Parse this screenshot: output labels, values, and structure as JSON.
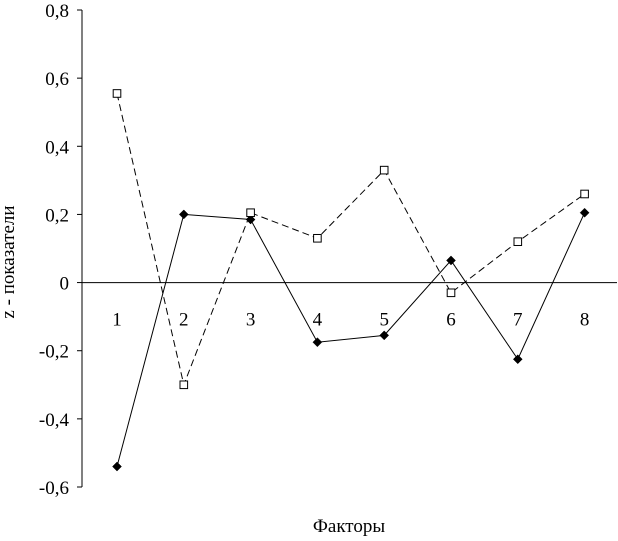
{
  "chart_data": {
    "type": "line",
    "title": "",
    "xlabel": "Факторы",
    "ylabel": "z - показатели",
    "categories": [
      "1",
      "2",
      "3",
      "4",
      "5",
      "6",
      "7",
      "8"
    ],
    "ylim": [
      -0.6,
      0.8
    ],
    "yticks": [
      0.8,
      0.6,
      0.4,
      0.2,
      0,
      -0.2,
      -0.4,
      -0.6
    ],
    "ytick_labels": [
      "0,8",
      "0,6",
      "0,4",
      "0,2",
      "0",
      "-0,2",
      "-0,4",
      "-0,6"
    ],
    "grid": false,
    "legend": "none",
    "series": [
      {
        "marker": "filled-diamond",
        "line": "solid",
        "color": "#000000",
        "values": [
          -0.54,
          0.2,
          0.185,
          -0.175,
          -0.155,
          0.065,
          -0.225,
          0.205
        ]
      },
      {
        "marker": "open-square",
        "line": "dashed",
        "color": "#000000",
        "values": [
          0.555,
          -0.3,
          0.205,
          0.13,
          0.33,
          -0.03,
          0.12,
          0.26
        ]
      }
    ]
  }
}
